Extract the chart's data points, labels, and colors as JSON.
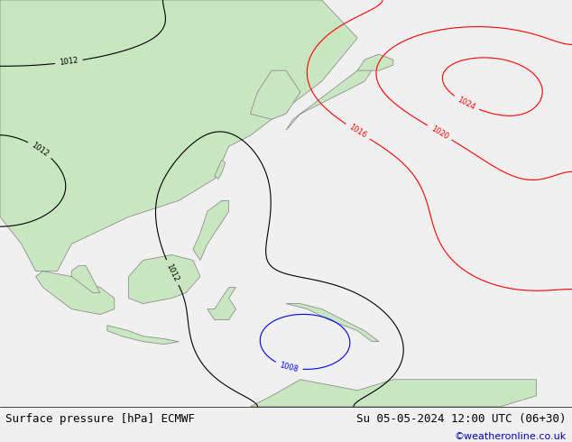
{
  "title_left": "Surface pressure [hPa] ECMWF",
  "title_right": "Su 05-05-2024 12:00 UTC (06+30)",
  "title_right2": "©weatheronline.co.uk",
  "bg_color": "#e8e8e8",
  "land_color": "#c8e6c0",
  "sea_color": "#e8e8e8",
  "fig_width": 6.34,
  "fig_height": 4.9,
  "dpi": 100
}
